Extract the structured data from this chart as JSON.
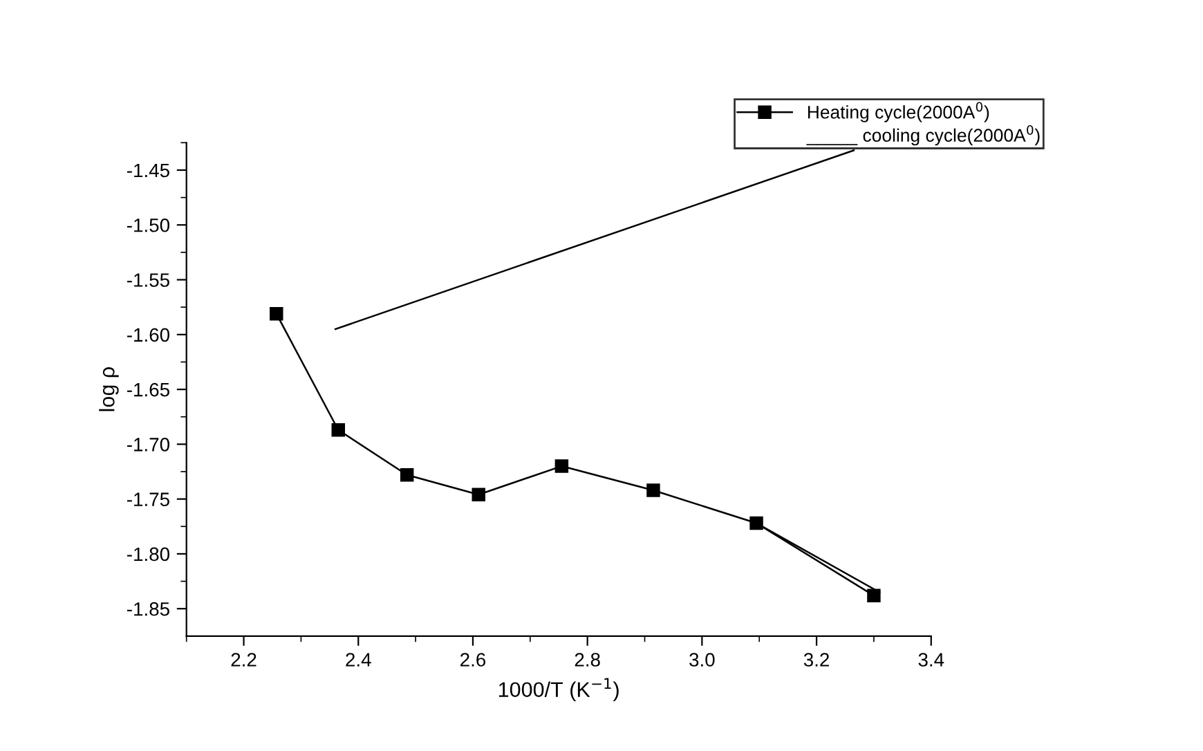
{
  "chart_data": {
    "type": "line",
    "xlabel": "1000/T (K$^{−1}$)",
    "ylabel": "log ρ",
    "xlim": [
      2.1,
      3.4
    ],
    "xticks": [
      2.2,
      2.4,
      2.6,
      2.8,
      {
        "value": 3,
        "label": "3.0"
      },
      3.2,
      3.4
    ],
    "ylim": [
      -1.875,
      -1.425
    ],
    "yticks": [
      -1.85,
      {
        "value": -1.8,
        "label": "-1.80"
      },
      -1.75,
      {
        "value": -1.7,
        "label": "-1.70"
      },
      -1.65,
      {
        "value": -1.6,
        "label": "-1.60"
      },
      -1.55,
      {
        "value": -1.5,
        "label": "-1.50"
      },
      -1.45
    ],
    "legend": "top right",
    "grid": false,
    "series": [
      {
        "name": "Heating cycle(2000A$^{0}$)",
        "color": "#000000",
        "marker": "square",
        "line_style": "solid",
        "x": [
          2.257,
          2.365,
          2.485,
          2.61,
          2.755,
          2.915,
          3.095,
          3.3
        ],
        "values": [
          -1.581,
          -1.687,
          -1.728,
          -1.746,
          -1.72,
          -1.742,
          -1.772,
          -1.838
        ]
      },
      {
        "name": "_____ cooling cycle(2000A$^{0}$)",
        "color": "#000000",
        "marker": "none",
        "line_style": "solid",
        "x": [
          2.36,
          3.265
        ],
        "values": [
          -1.595,
          -1.432
        ]
      },
      {
        "color": "#000000",
        "marker": "none",
        "line_style": "solid",
        "x": [
          3.095,
          3.31
        ],
        "values": [
          -1.772,
          -1.835
        ]
      }
    ]
  }
}
